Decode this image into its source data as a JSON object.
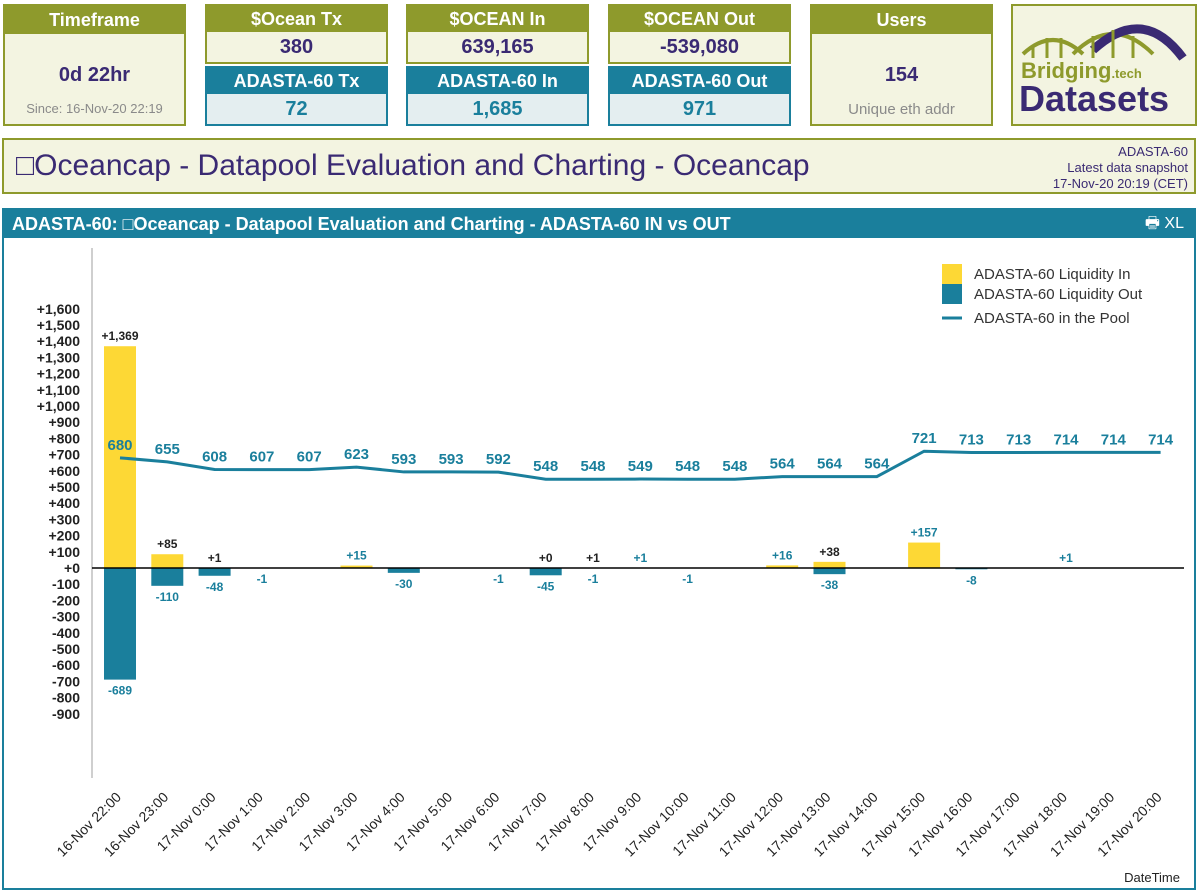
{
  "cards": {
    "timeframe": {
      "title": "Timeframe",
      "value": "0d 22hr",
      "sub": "Since: 16-Nov-20 22:19"
    },
    "ocean_tx": {
      "title": "$Ocean Tx",
      "value": "380",
      "title2": "ADASTA-60 Tx",
      "value2": "72"
    },
    "ocean_in": {
      "title": "$OCEAN In",
      "value": "639,165",
      "title2": "ADASTA-60 In",
      "value2": "1,685"
    },
    "ocean_out": {
      "title": "$OCEAN Out",
      "value": "-539,080",
      "title2": "ADASTA-60 Out",
      "value2": "971"
    },
    "users": {
      "title": "Users",
      "value": "154",
      "sub": "Unique eth addr"
    }
  },
  "logo": {
    "line1": "Bridging",
    "tech": ".tech",
    "line2": "Datasets",
    "color_green": "#8e9a2c",
    "color_purple": "#3a2a73"
  },
  "titlebar": {
    "title": "□Oceancap - Datapool Evaluation and Charting - Oceancap",
    "token": "ADASTA-60",
    "snapshot_label": "Latest data snapshot",
    "snapshot_time": "17-Nov-20 20:19 (CET)"
  },
  "chart_panel": {
    "header": "ADASTA-60: □Oceancap - Datapool Evaluation and Charting - ADASTA-60 IN vs OUT",
    "tools": "🖶 XL"
  },
  "chart_data": {
    "type": "bar",
    "xlabel": "DateTime",
    "ylabel": "",
    "ylim": [
      -900,
      1600
    ],
    "yticks": [
      1600,
      1500,
      1400,
      1300,
      1200,
      1100,
      1000,
      900,
      800,
      700,
      600,
      500,
      400,
      300,
      200,
      100,
      0,
      -100,
      -200,
      -300,
      -400,
      -500,
      -600,
      -700,
      -800,
      -900
    ],
    "categories": [
      "16-Nov 22:00",
      "16-Nov 23:00",
      "17-Nov 0:00",
      "17-Nov 1:00",
      "17-Nov 2:00",
      "17-Nov 3:00",
      "17-Nov 4:00",
      "17-Nov 5:00",
      "17-Nov 6:00",
      "17-Nov 7:00",
      "17-Nov 8:00",
      "17-Nov 9:00",
      "17-Nov 10:00",
      "17-Nov 11:00",
      "17-Nov 12:00",
      "17-Nov 13:00",
      "17-Nov 14:00",
      "17-Nov 15:00",
      "17-Nov 16:00",
      "17-Nov 17:00",
      "17-Nov 18:00",
      "17-Nov 19:00",
      "17-Nov 20:00"
    ],
    "series": [
      {
        "name": "ADASTA-60 Liquidity In",
        "kind": "bar",
        "color": "#fdd835",
        "values": [
          1369,
          85,
          1,
          null,
          null,
          15,
          null,
          null,
          null,
          0,
          1,
          1,
          null,
          null,
          16,
          38,
          null,
          157,
          null,
          null,
          1,
          null,
          null
        ],
        "labels": [
          "+1,369",
          "+85",
          "+1",
          null,
          null,
          "+15",
          null,
          null,
          null,
          "+0",
          "+1",
          "+1",
          null,
          null,
          "+16",
          "+38",
          null,
          "+157",
          null,
          null,
          "+1",
          null,
          null
        ]
      },
      {
        "name": "ADASTA-60 Liquidity Out",
        "kind": "bar",
        "color": "#1a7f9c",
        "values": [
          -689,
          -110,
          -48,
          -1,
          null,
          null,
          -30,
          null,
          -1,
          -45,
          -1,
          null,
          -1,
          null,
          null,
          -38,
          null,
          null,
          -8,
          null,
          null,
          null,
          null
        ],
        "labels": [
          "-689",
          "-110",
          "-48",
          "-1",
          null,
          null,
          "-30",
          null,
          "-1",
          "-45",
          "-1",
          null,
          "-1",
          null,
          null,
          "-38",
          null,
          null,
          "-8",
          null,
          null,
          null,
          null
        ]
      },
      {
        "name": "ADASTA-60 in the Pool",
        "kind": "line",
        "color": "#1a7f9c",
        "values": [
          680,
          655,
          608,
          607,
          607,
          623,
          593,
          593,
          592,
          548,
          548,
          549,
          548,
          548,
          564,
          564,
          564,
          721,
          713,
          713,
          714,
          714,
          714
        ]
      }
    ],
    "legend_position": "top-right",
    "grid": false
  }
}
